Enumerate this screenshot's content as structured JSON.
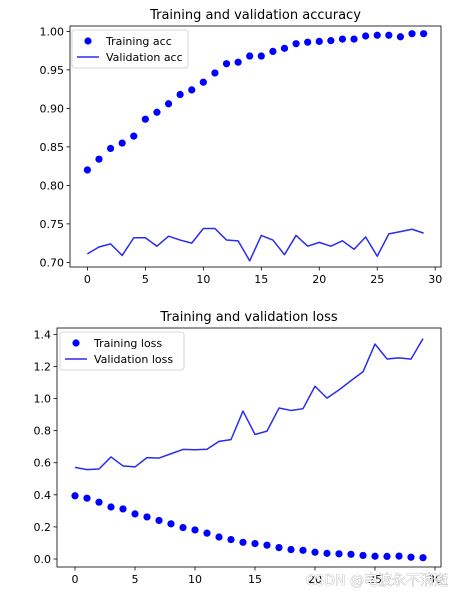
{
  "watermark": "CSDN @电波永不消逝",
  "colors": {
    "training": "#0000ff",
    "validation": "#2b2bf0",
    "axis": "#000000",
    "legend_border": "#cccccc"
  },
  "chart_data": [
    {
      "type": "scatter+line",
      "title": "Training and validation accuracy",
      "xlabel": "",
      "ylabel": "",
      "xlim": [
        -1.5,
        30.5
      ],
      "ylim": [
        0.694,
        1.007
      ],
      "xticks": [
        0,
        5,
        10,
        15,
        20,
        25,
        30
      ],
      "yticks": [
        0.7,
        0.75,
        0.8,
        0.85,
        0.9,
        0.95,
        1.0
      ],
      "ytick_labels": [
        "0.70",
        "0.75",
        "0.80",
        "0.85",
        "0.90",
        "0.95",
        "1.00"
      ],
      "grid": false,
      "legend_position": "top-left",
      "x": [
        0,
        1,
        2,
        3,
        4,
        5,
        6,
        7,
        8,
        9,
        10,
        11,
        12,
        13,
        14,
        15,
        16,
        17,
        18,
        19,
        20,
        21,
        22,
        23,
        24,
        25,
        26,
        27,
        28,
        29
      ],
      "series": [
        {
          "name": "Training acc",
          "style": "dots",
          "values": [
            0.82,
            0.834,
            0.848,
            0.855,
            0.864,
            0.886,
            0.895,
            0.906,
            0.918,
            0.924,
            0.934,
            0.946,
            0.958,
            0.96,
            0.968,
            0.968,
            0.974,
            0.978,
            0.984,
            0.986,
            0.987,
            0.988,
            0.99,
            0.99,
            0.994,
            0.995,
            0.995,
            0.993,
            0.997,
            0.997
          ]
        },
        {
          "name": "Validation acc",
          "style": "line",
          "values": [
            0.711,
            0.72,
            0.724,
            0.709,
            0.732,
            0.732,
            0.721,
            0.734,
            0.729,
            0.725,
            0.744,
            0.744,
            0.729,
            0.728,
            0.702,
            0.735,
            0.729,
            0.71,
            0.735,
            0.721,
            0.726,
            0.721,
            0.728,
            0.717,
            0.733,
            0.708,
            0.737,
            0.74,
            0.743,
            0.738
          ]
        }
      ]
    },
    {
      "type": "scatter+line",
      "title": "Training and validation loss",
      "xlabel": "",
      "ylabel": "",
      "xlim": [
        -1.5,
        30.5
      ],
      "ylim": [
        -0.05,
        1.44
      ],
      "xticks": [
        0,
        5,
        10,
        15,
        20,
        25,
        30
      ],
      "yticks": [
        0.0,
        0.2,
        0.4,
        0.6,
        0.8,
        1.0,
        1.2,
        1.4
      ],
      "ytick_labels": [
        "0.0",
        "0.2",
        "0.4",
        "0.6",
        "0.8",
        "1.0",
        "1.2",
        "1.4"
      ],
      "grid": false,
      "legend_position": "top-left",
      "x": [
        0,
        1,
        2,
        3,
        4,
        5,
        6,
        7,
        8,
        9,
        10,
        11,
        12,
        13,
        14,
        15,
        16,
        17,
        18,
        19,
        20,
        21,
        22,
        23,
        24,
        25,
        26,
        27,
        28,
        29
      ],
      "series": [
        {
          "name": "Training loss",
          "style": "dots",
          "values": [
            0.394,
            0.379,
            0.354,
            0.324,
            0.312,
            0.281,
            0.262,
            0.24,
            0.219,
            0.196,
            0.181,
            0.161,
            0.137,
            0.121,
            0.104,
            0.096,
            0.086,
            0.071,
            0.059,
            0.054,
            0.042,
            0.035,
            0.032,
            0.029,
            0.022,
            0.017,
            0.016,
            0.018,
            0.011,
            0.008
          ]
        },
        {
          "name": "Validation loss",
          "style": "line",
          "values": [
            0.571,
            0.557,
            0.561,
            0.636,
            0.58,
            0.574,
            0.632,
            0.629,
            0.656,
            0.683,
            0.681,
            0.684,
            0.733,
            0.744,
            0.922,
            0.776,
            0.797,
            0.941,
            0.926,
            0.937,
            1.077,
            1.003,
            1.054,
            1.112,
            1.167,
            1.34,
            1.247,
            1.254,
            1.246,
            1.374
          ]
        }
      ]
    }
  ]
}
